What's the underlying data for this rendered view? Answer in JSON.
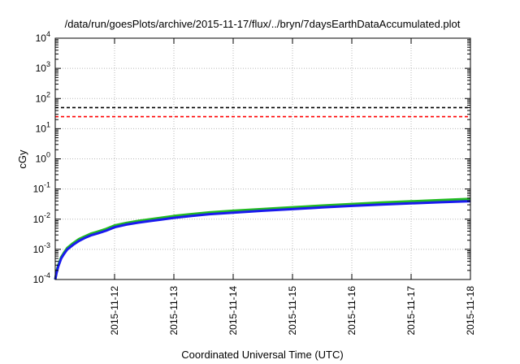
{
  "chart_data": {
    "type": "line",
    "title": "/data/run/goesPlots/archive/2015-11-17/flux/../bryn/7daysEarthDataAccumulated.plot",
    "xlabel": "Coordinated Universal Time (UTC)",
    "ylabel": "cGy",
    "y_scale": "log",
    "ylim_exponents": [
      -4,
      4
    ],
    "y_ticks": [
      {
        "base": "10",
        "exp": "4"
      },
      {
        "base": "10",
        "exp": "3"
      },
      {
        "base": "10",
        "exp": "2"
      },
      {
        "base": "10",
        "exp": "1"
      },
      {
        "base": "10",
        "exp": "0"
      },
      {
        "base": "10",
        "exp": "-1"
      },
      {
        "base": "10",
        "exp": "-2"
      },
      {
        "base": "10",
        "exp": "-3"
      },
      {
        "base": "10",
        "exp": "-4"
      }
    ],
    "xlim_days": [
      0,
      7
    ],
    "x_ticks": [
      {
        "label": "2015-11-12",
        "day": 1
      },
      {
        "label": "2015-11-13",
        "day": 2
      },
      {
        "label": "2015-11-14",
        "day": 3
      },
      {
        "label": "2015-11-15",
        "day": 4
      },
      {
        "label": "2015-11-16",
        "day": 5
      },
      {
        "label": "2015-11-17",
        "day": 6
      },
      {
        "label": "2015-11-18",
        "day": 7
      }
    ],
    "grid": true,
    "reference_lines": [
      {
        "value": 50,
        "color": "#000000",
        "dash": "dashed"
      },
      {
        "value": 25,
        "color": "#ff0000",
        "dash": "dashed"
      }
    ],
    "series": [
      {
        "color": "#22bb22",
        "points": [
          [
            0,
            0.0001
          ],
          [
            0.02,
            0.00018
          ],
          [
            0.05,
            0.0003
          ],
          [
            0.1,
            0.00055
          ],
          [
            0.15,
            0.0008
          ],
          [
            0.2,
            0.0011
          ],
          [
            0.3,
            0.0016
          ],
          [
            0.4,
            0.0022
          ],
          [
            0.5,
            0.0027
          ],
          [
            0.6,
            0.0033
          ],
          [
            0.7,
            0.0038
          ],
          [
            0.85,
            0.0047
          ],
          [
            1.0,
            0.0062
          ],
          [
            1.2,
            0.0075
          ],
          [
            1.4,
            0.0088
          ],
          [
            1.6,
            0.01
          ],
          [
            1.8,
            0.0113
          ],
          [
            2.0,
            0.0128
          ],
          [
            2.3,
            0.0147
          ],
          [
            2.6,
            0.0168
          ],
          [
            3.0,
            0.019
          ],
          [
            3.5,
            0.0218
          ],
          [
            4.0,
            0.0248
          ],
          [
            4.5,
            0.0282
          ],
          [
            5.0,
            0.0318
          ],
          [
            5.5,
            0.0355
          ],
          [
            6.0,
            0.039
          ],
          [
            6.5,
            0.0428
          ],
          [
            7.0,
            0.047
          ]
        ]
      },
      {
        "color": "#1a1aee",
        "points": [
          [
            0,
            0.0001
          ],
          [
            0.02,
            0.00016
          ],
          [
            0.05,
            0.00027
          ],
          [
            0.1,
            0.0005
          ],
          [
            0.15,
            0.00072
          ],
          [
            0.2,
            0.00098
          ],
          [
            0.3,
            0.0014
          ],
          [
            0.4,
            0.0019
          ],
          [
            0.5,
            0.0024
          ],
          [
            0.6,
            0.0029
          ],
          [
            0.7,
            0.0033
          ],
          [
            0.85,
            0.0041
          ],
          [
            1.0,
            0.0054
          ],
          [
            1.2,
            0.0066
          ],
          [
            1.4,
            0.0077
          ],
          [
            1.6,
            0.0087
          ],
          [
            1.8,
            0.0098
          ],
          [
            2.0,
            0.0111
          ],
          [
            2.3,
            0.0128
          ],
          [
            2.6,
            0.0146
          ],
          [
            3.0,
            0.0165
          ],
          [
            3.5,
            0.019
          ],
          [
            4.0,
            0.0215
          ],
          [
            4.5,
            0.0245
          ],
          [
            5.0,
            0.0275
          ],
          [
            5.5,
            0.0305
          ],
          [
            6.0,
            0.0335
          ],
          [
            6.5,
            0.0365
          ],
          [
            7.0,
            0.0395
          ]
        ]
      }
    ]
  }
}
